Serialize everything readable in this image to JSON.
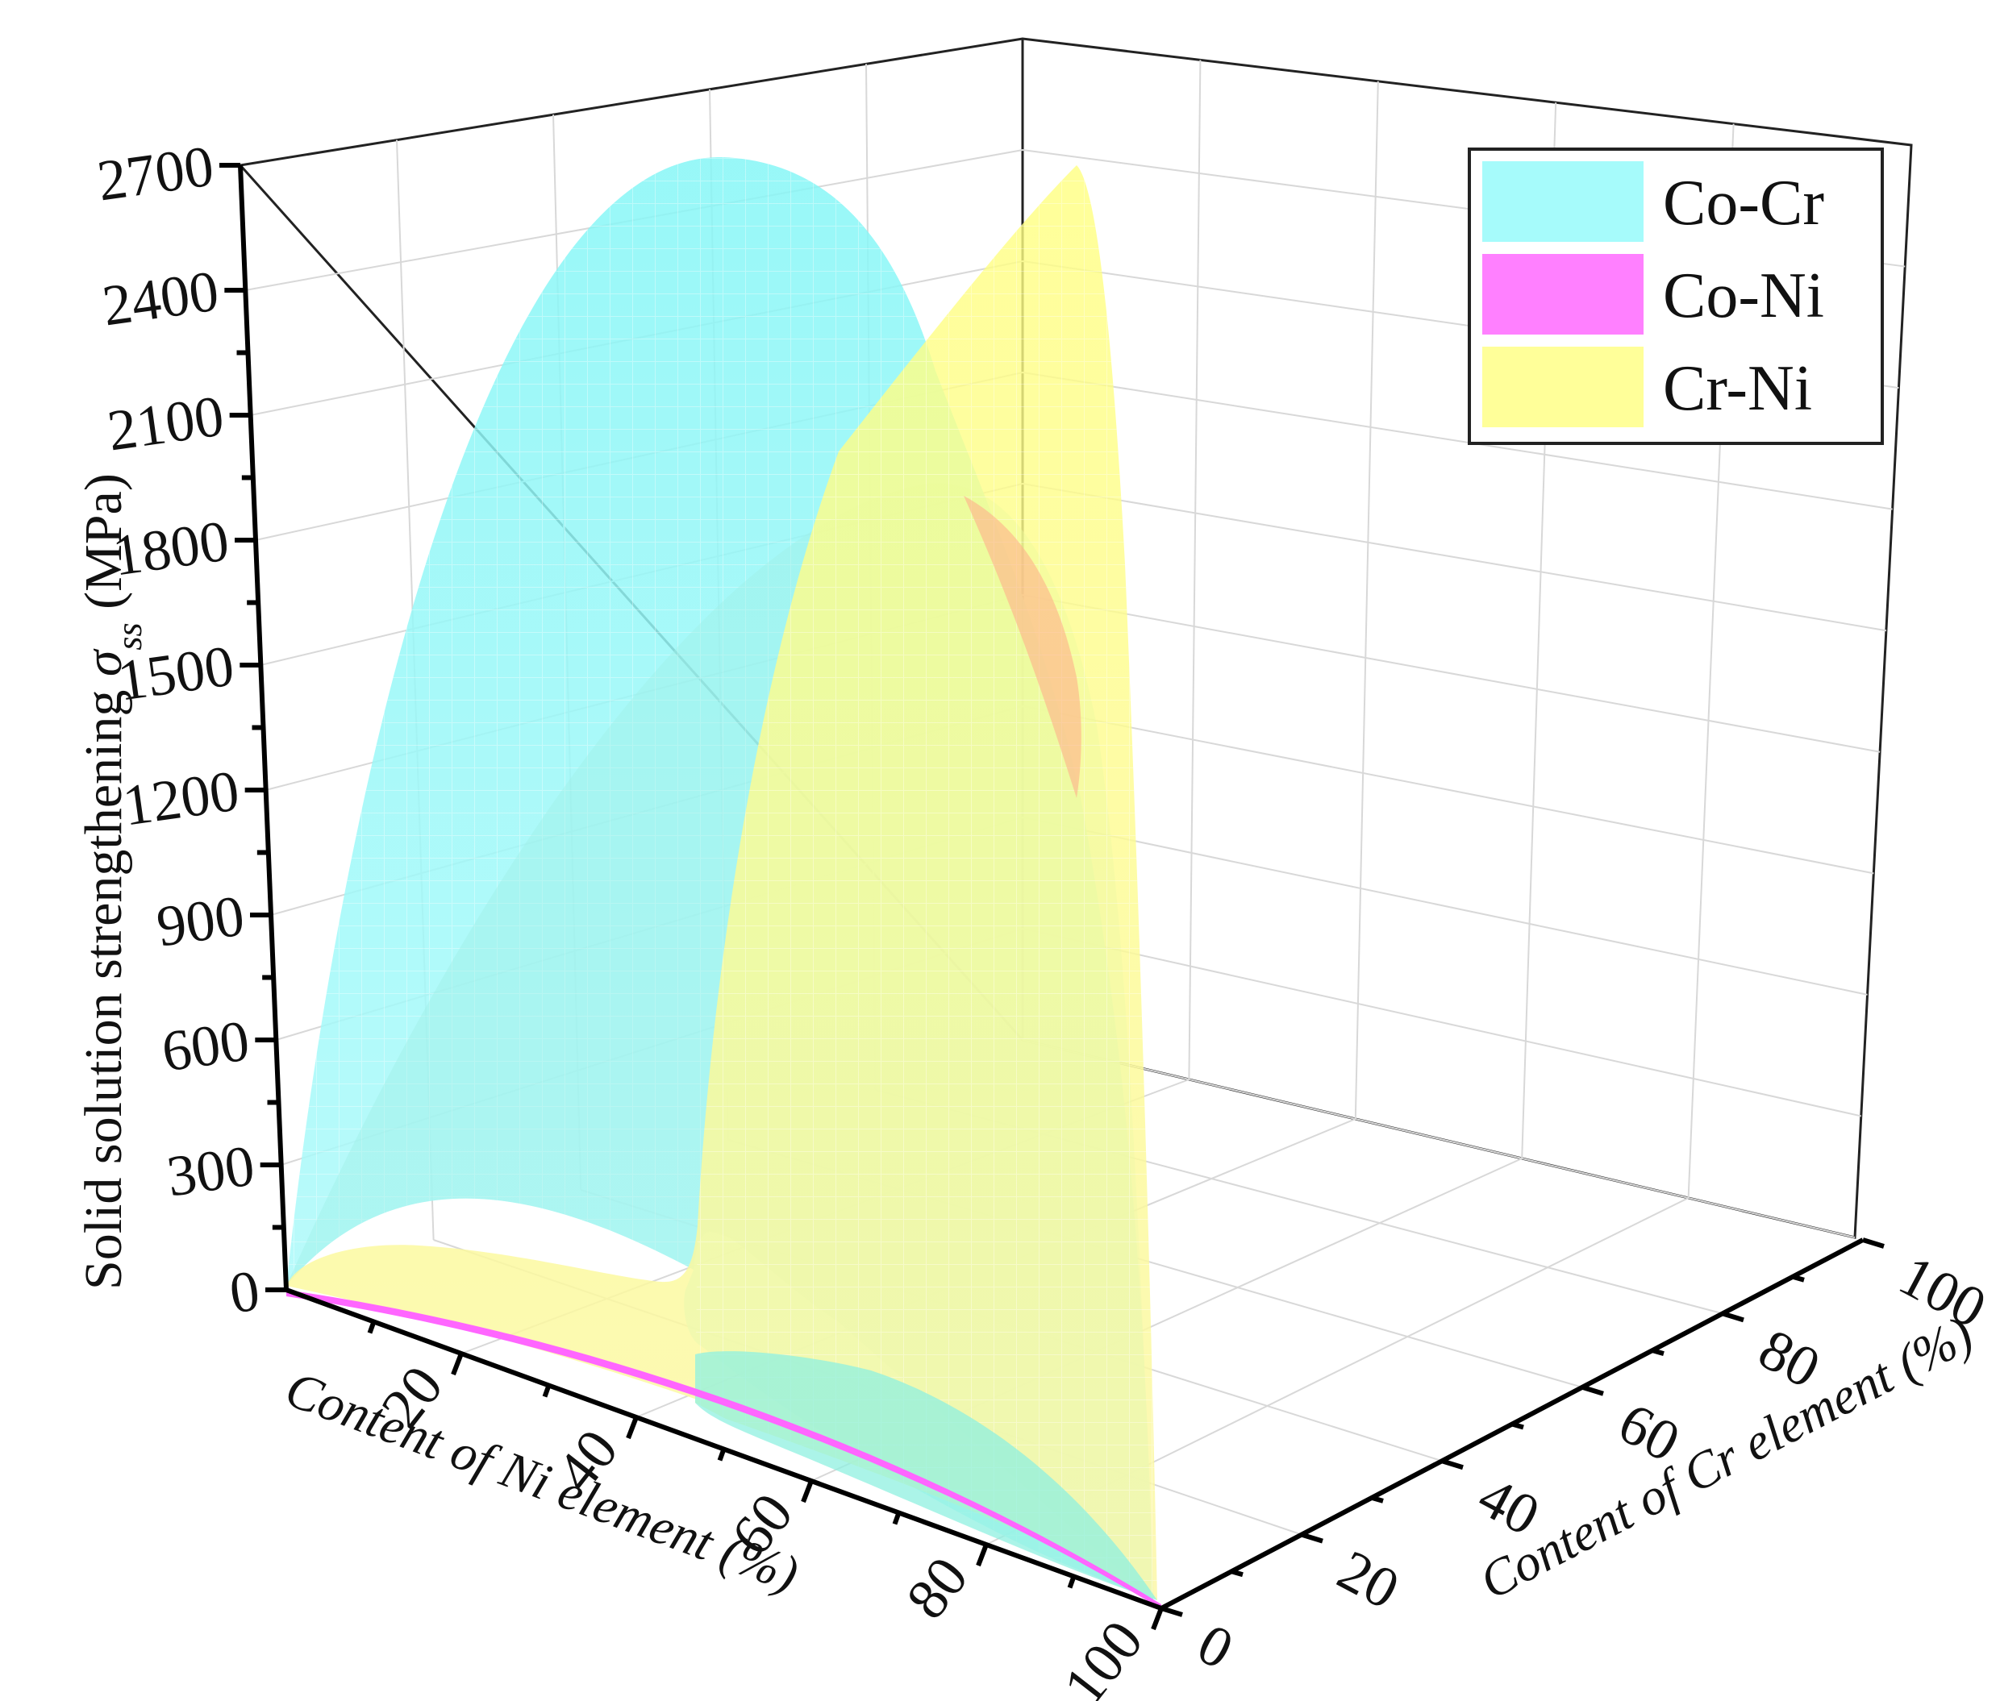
{
  "chart_data": {
    "type": "surface3d",
    "z_axis": {
      "label_main": "Solid solution strengthening ",
      "label_symbol": "σ",
      "label_sub": "ss",
      "label_unit": " (MPa)",
      "range": [
        0,
        2700
      ],
      "ticks": [
        "0",
        "300",
        "600",
        "900",
        "1200",
        "1500",
        "1800",
        "2100",
        "2400",
        "2700"
      ]
    },
    "x_axis": {
      "label": "Content of Ni element (%)",
      "range": [
        0,
        100
      ],
      "ticks": [
        "20",
        "40",
        "60",
        "80",
        "100"
      ]
    },
    "y_axis": {
      "label": "Content of Cr element (%)",
      "range": [
        0,
        100
      ],
      "ticks": [
        "0",
        "20",
        "40",
        "60",
        "80",
        "100"
      ]
    },
    "grid": true,
    "legend": {
      "placement": "top-right",
      "entries": [
        {
          "label": "Co-Cr",
          "color": "#a6fbfb"
        },
        {
          "label": "Co-Ni",
          "color": "#ff80ff"
        },
        {
          "label": "Cr-Ni",
          "color": "#ffff99"
        }
      ]
    },
    "series": [
      {
        "name": "Co-Cr",
        "color": "#80f5f5",
        "peak_value": 2700,
        "peak_at": {
          "Ni": 0,
          "Cr": 50
        }
      },
      {
        "name": "Co-Ni",
        "color": "#ff66ff",
        "peak_value": 0
      },
      {
        "name": "Cr-Ni",
        "color": "#ffff80",
        "peak_value": 2700,
        "peak_at": {
          "Ni": 50,
          "Cr": 50
        }
      }
    ]
  }
}
